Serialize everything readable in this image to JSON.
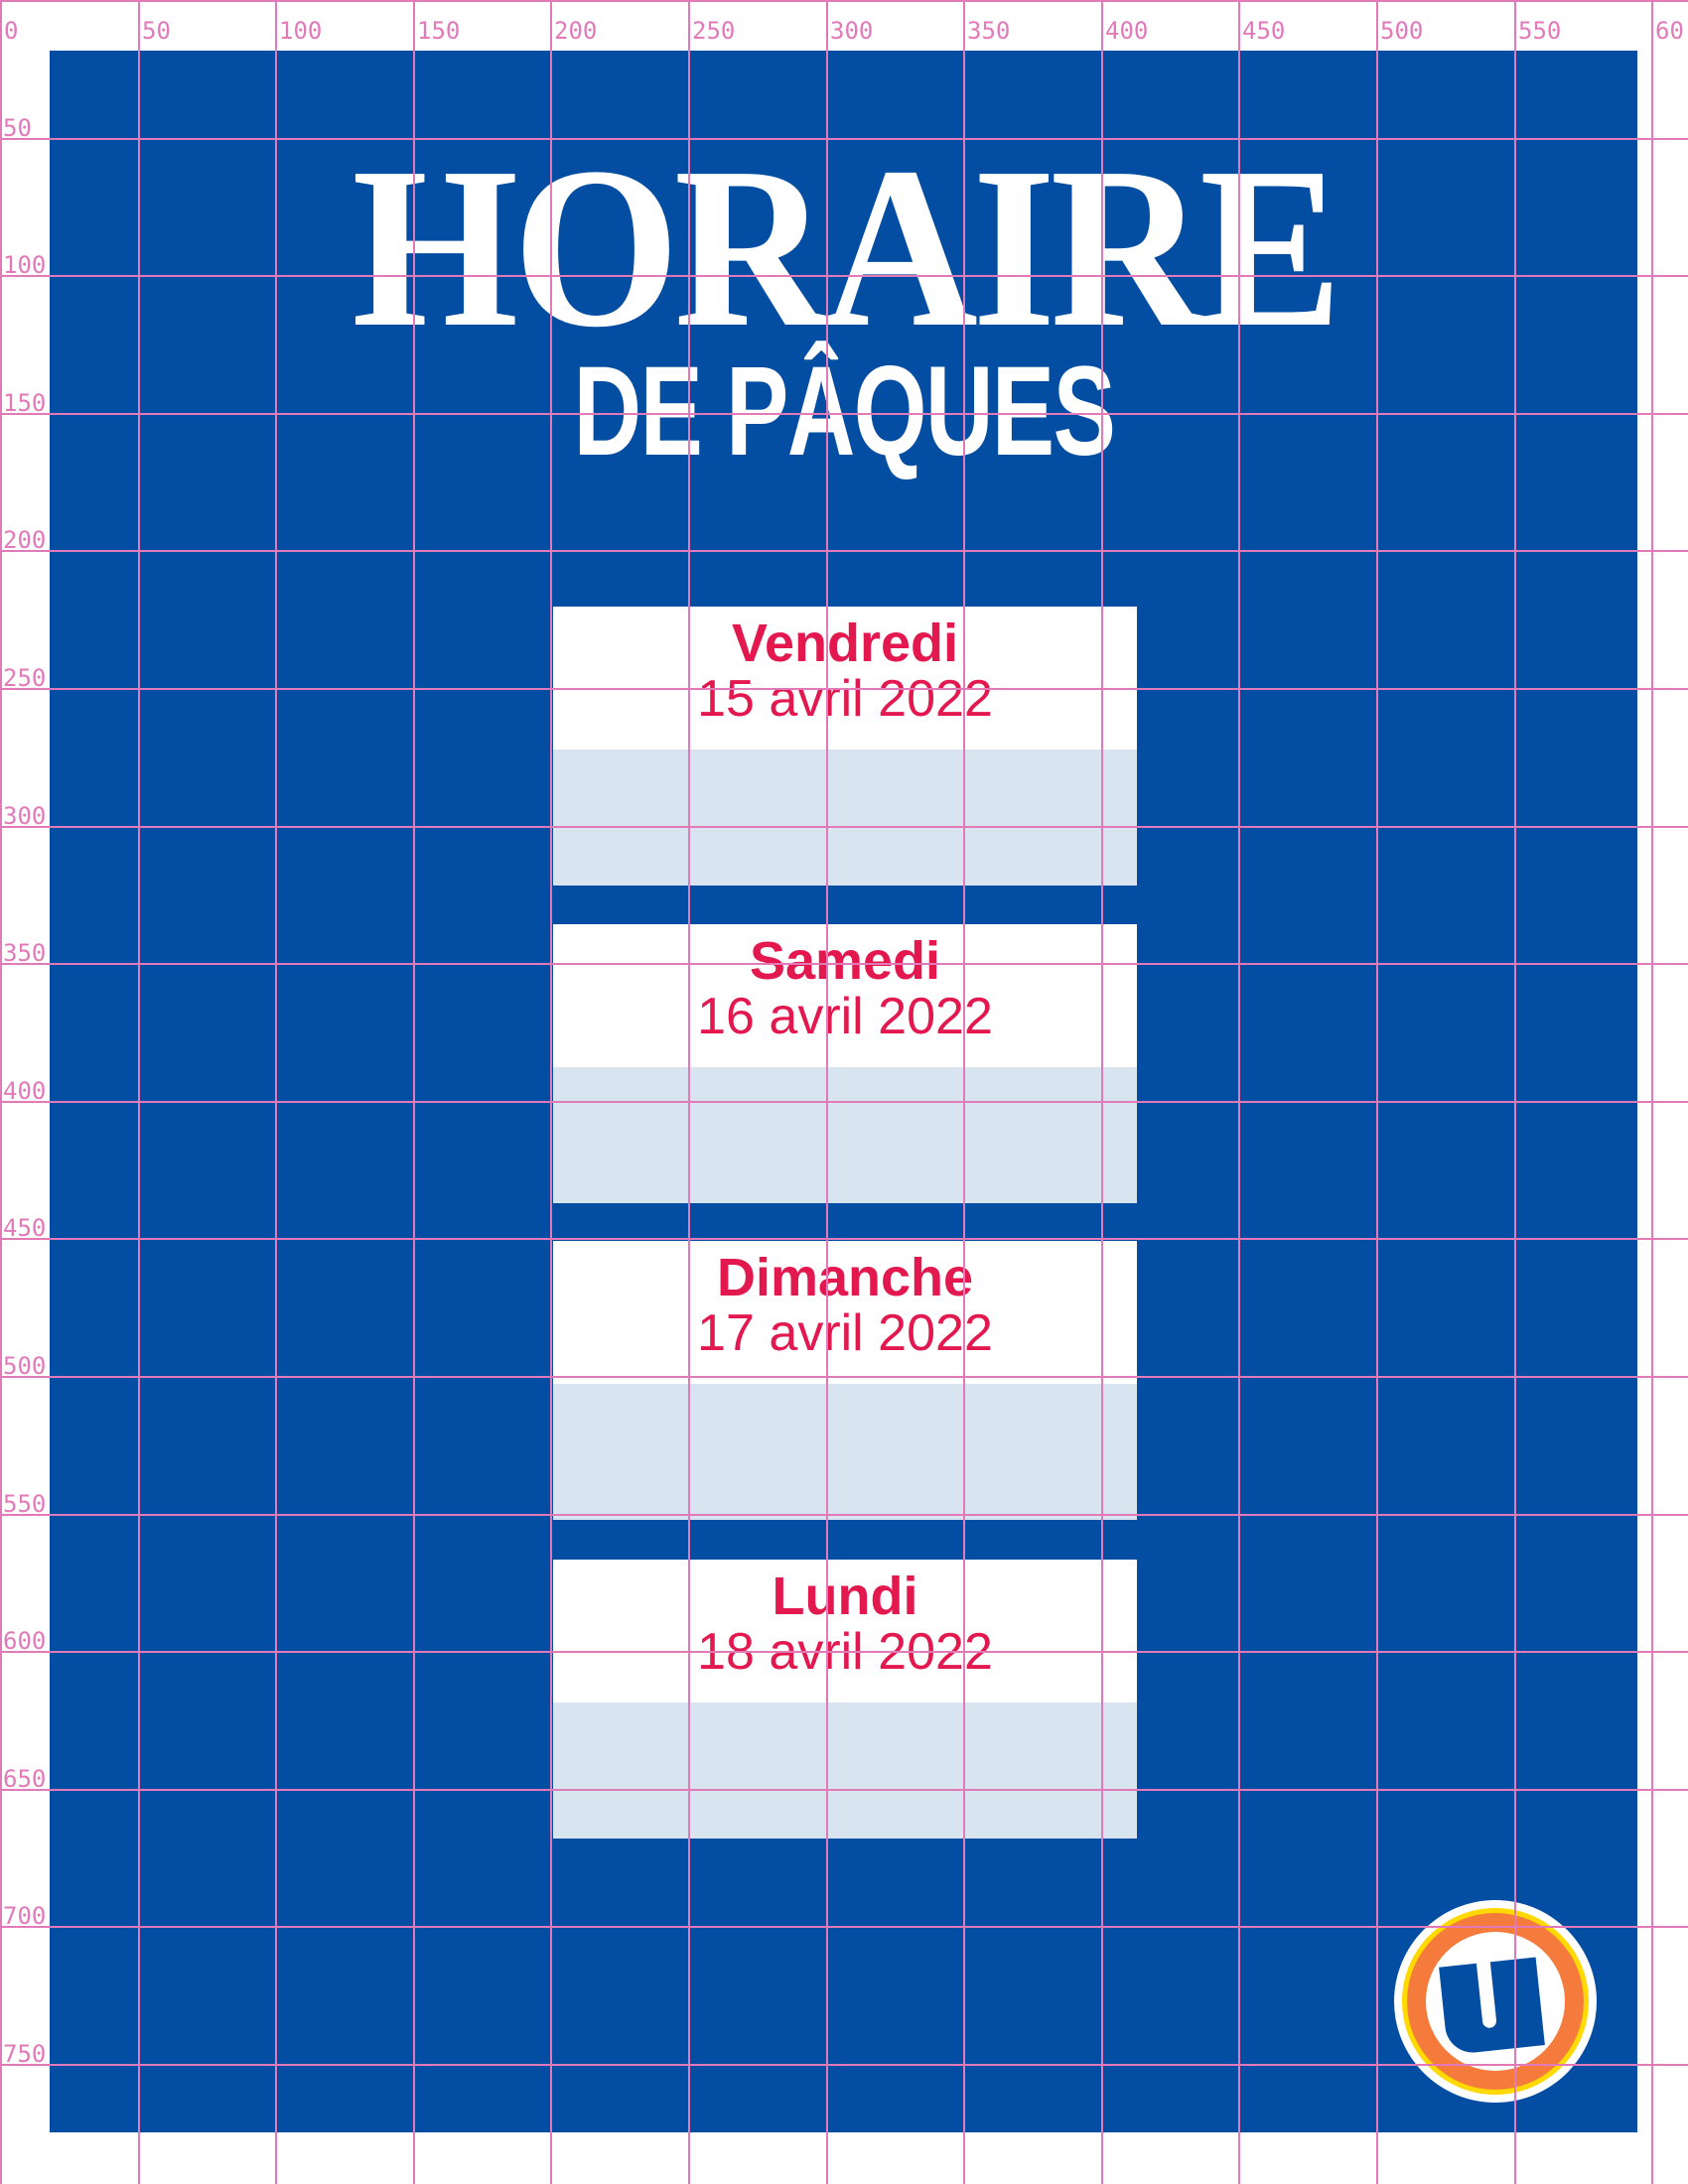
{
  "colors": {
    "background_blue": "#034ea2",
    "accent_pink": "#e2184f",
    "slot_light": "#d9e4f1",
    "grid_pink": "#e27ab9",
    "logo_orange": "#f47b3c",
    "logo_yellow": "#ffd900"
  },
  "header": {
    "title": "HORAIRE",
    "subtitle": "DE PÂQUES"
  },
  "days": [
    {
      "name": "Vendredi",
      "date": "15 avril 2022"
    },
    {
      "name": "Samedi",
      "date": "16 avril 2022"
    },
    {
      "name": "Dimanche",
      "date": "17 avril 2022"
    },
    {
      "name": "Lundi",
      "date": "18 avril 2022"
    }
  ],
  "ruler": {
    "x_labels": [
      "0",
      "50",
      "100",
      "150",
      "200",
      "250",
      "300",
      "350",
      "400",
      "450",
      "500",
      "550",
      "60"
    ],
    "y_labels": [
      "50",
      "100",
      "150",
      "200",
      "250",
      "300",
      "350",
      "400",
      "450",
      "500",
      "550",
      "600",
      "650",
      "700",
      "750"
    ]
  },
  "logo": {
    "icon": "u-logo-icon",
    "letter": "U"
  }
}
